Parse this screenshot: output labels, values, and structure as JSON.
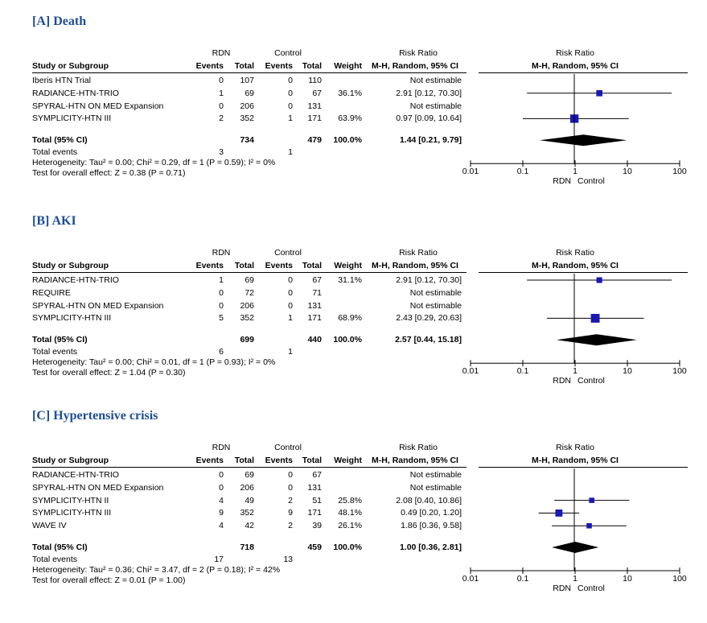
{
  "columns": {
    "rdn": "RDN",
    "control": "Control",
    "risk_ratio": "Risk Ratio",
    "study_or_subgroup": "Study or Subgroup",
    "events": "Events",
    "total": "Total",
    "weight": "Weight",
    "method_ci": "M-H, Random, 95% CI",
    "plot_title": "Risk Ratio",
    "plot_method": "M-H, Random, 95% CI"
  },
  "axis": {
    "ticks": [
      "0.01",
      "0.1",
      "1",
      "10",
      "100"
    ],
    "favours_left": "RDN",
    "favours_right": "Control",
    "scale": "log10",
    "range": [
      0.01,
      100
    ]
  },
  "colors": {
    "title": "#1f4e96",
    "marker": "#1a18b0",
    "diamond": "#000000"
  },
  "panels": [
    {
      "title": "[A] Death",
      "studies": [
        {
          "name": "Iberis HTN Trial",
          "rdn_events": "0",
          "rdn_total": "107",
          "ctrl_events": "0",
          "ctrl_total": "110",
          "weight": "",
          "ci_text": "Not estimable"
        },
        {
          "name": "RADIANCE-HTN-TRIO",
          "rdn_events": "1",
          "rdn_total": "69",
          "ctrl_events": "0",
          "ctrl_total": "67",
          "weight": "36.1%",
          "ci_text": "2.91 [0.12, 70.30]"
        },
        {
          "name": "SPYRAL-HTN ON MED Expansion",
          "rdn_events": "0",
          "rdn_total": "206",
          "ctrl_events": "0",
          "ctrl_total": "131",
          "weight": "",
          "ci_text": "Not estimable"
        },
        {
          "name": "SYMPLICITY-HTN III",
          "rdn_events": "2",
          "rdn_total": "352",
          "ctrl_events": "1",
          "ctrl_total": "171",
          "weight": "63.9%",
          "ci_text": "0.97 [0.09, 10.64]"
        }
      ],
      "total": {
        "label": "Total (95% CI)",
        "rdn_total": "734",
        "ctrl_total": "479",
        "weight": "100.0%",
        "ci_text": "1.44 [0.21, 9.79]"
      },
      "total_events": {
        "label": "Total events",
        "rdn": "3",
        "ctrl": "1"
      },
      "heterogeneity": "Heterogeneity: Tau² = 0.00; Chi² = 0.29, df = 1 (P = 0.59); I² = 0%",
      "overall_effect": "Test for overall effect: Z = 0.38 (P = 0.71)"
    },
    {
      "title": "[B] AKI",
      "studies": [
        {
          "name": "RADIANCE-HTN-TRIO",
          "rdn_events": "1",
          "rdn_total": "69",
          "ctrl_events": "0",
          "ctrl_total": "67",
          "weight": "31.1%",
          "ci_text": "2.91 [0.12, 70.30]"
        },
        {
          "name": "REQUIRE",
          "rdn_events": "0",
          "rdn_total": "72",
          "ctrl_events": "0",
          "ctrl_total": "71",
          "weight": "",
          "ci_text": "Not estimable"
        },
        {
          "name": "SPYRAL-HTN ON MED Expansion",
          "rdn_events": "0",
          "rdn_total": "206",
          "ctrl_events": "0",
          "ctrl_total": "131",
          "weight": "",
          "ci_text": "Not estimable"
        },
        {
          "name": "SYMPLICITY-HTN III",
          "rdn_events": "5",
          "rdn_total": "352",
          "ctrl_events": "1",
          "ctrl_total": "171",
          "weight": "68.9%",
          "ci_text": "2.43 [0.29, 20.63]"
        }
      ],
      "total": {
        "label": "Total (95% CI)",
        "rdn_total": "699",
        "ctrl_total": "440",
        "weight": "100.0%",
        "ci_text": "2.57 [0.44, 15.18]"
      },
      "total_events": {
        "label": "Total events",
        "rdn": "6",
        "ctrl": "1"
      },
      "heterogeneity": "Heterogeneity: Tau² = 0.00; Chi² = 0.01, df = 1 (P = 0.93); I² = 0%",
      "overall_effect": "Test for overall effect: Z = 1.04 (P = 0.30)"
    },
    {
      "title": "[C] Hypertensive crisis",
      "studies": [
        {
          "name": "RADIANCE-HTN-TRIO",
          "rdn_events": "0",
          "rdn_total": "69",
          "ctrl_events": "0",
          "ctrl_total": "67",
          "weight": "",
          "ci_text": "Not estimable"
        },
        {
          "name": "SPYRAL-HTN ON MED Expansion",
          "rdn_events": "0",
          "rdn_total": "206",
          "ctrl_events": "0",
          "ctrl_total": "131",
          "weight": "",
          "ci_text": "Not estimable"
        },
        {
          "name": "SYMPLICITY-HTN II",
          "rdn_events": "4",
          "rdn_total": "49",
          "ctrl_events": "2",
          "ctrl_total": "51",
          "weight": "25.8%",
          "ci_text": "2.08 [0.40, 10.86]"
        },
        {
          "name": "SYMPLICITY-HTN III",
          "rdn_events": "9",
          "rdn_total": "352",
          "ctrl_events": "9",
          "ctrl_total": "171",
          "weight": "48.1%",
          "ci_text": "0.49 [0.20, 1.20]"
        },
        {
          "name": "WAVE IV",
          "rdn_events": "4",
          "rdn_total": "42",
          "ctrl_events": "2",
          "ctrl_total": "39",
          "weight": "26.1%",
          "ci_text": "1.86 [0.36, 9.58]"
        }
      ],
      "total": {
        "label": "Total (95% CI)",
        "rdn_total": "718",
        "ctrl_total": "459",
        "weight": "100.0%",
        "ci_text": "1.00 [0.36, 2.81]"
      },
      "total_events": {
        "label": "Total events",
        "rdn": "17",
        "ctrl": "13"
      },
      "heterogeneity": "Heterogeneity: Tau² = 0.36; Chi² = 3.47, df = 2 (P = 0.18); I² = 42%",
      "overall_effect": "Test for overall effect: Z = 0.01 (P = 1.00)"
    }
  ],
  "chart_data": [
    {
      "type": "scatter",
      "title": "[A] Death",
      "x_scale": "log",
      "xlim": [
        0.01,
        100
      ],
      "xticks": [
        "0.01",
        "0.1",
        "1",
        "10",
        "100"
      ],
      "points": [
        {
          "study": "Iberis HTN Trial",
          "rr": null,
          "lo": null,
          "hi": null,
          "weight": null
        },
        {
          "study": "RADIANCE-HTN-TRIO",
          "rr": 2.91,
          "lo": 0.12,
          "hi": 70.3,
          "weight": 36.1
        },
        {
          "study": "SPYRAL-HTN ON MED Expansion",
          "rr": null,
          "lo": null,
          "hi": null,
          "weight": null
        },
        {
          "study": "SYMPLICITY-HTN III",
          "rr": 0.97,
          "lo": 0.09,
          "hi": 10.64,
          "weight": 63.9
        }
      ],
      "pooled": {
        "rr": 1.44,
        "lo": 0.21,
        "hi": 9.79
      }
    },
    {
      "type": "scatter",
      "title": "[B] AKI",
      "x_scale": "log",
      "xlim": [
        0.01,
        100
      ],
      "xticks": [
        "0.01",
        "0.1",
        "1",
        "10",
        "100"
      ],
      "points": [
        {
          "study": "RADIANCE-HTN-TRIO",
          "rr": 2.91,
          "lo": 0.12,
          "hi": 70.3,
          "weight": 31.1
        },
        {
          "study": "REQUIRE",
          "rr": null,
          "lo": null,
          "hi": null,
          "weight": null
        },
        {
          "study": "SPYRAL-HTN ON MED Expansion",
          "rr": null,
          "lo": null,
          "hi": null,
          "weight": null
        },
        {
          "study": "SYMPLICITY-HTN III",
          "rr": 2.43,
          "lo": 0.29,
          "hi": 20.63,
          "weight": 68.9
        }
      ],
      "pooled": {
        "rr": 2.57,
        "lo": 0.44,
        "hi": 15.18
      }
    },
    {
      "type": "scatter",
      "title": "[C] Hypertensive crisis",
      "x_scale": "log",
      "xlim": [
        0.01,
        100
      ],
      "xticks": [
        "0.01",
        "0.1",
        "1",
        "10",
        "100"
      ],
      "points": [
        {
          "study": "RADIANCE-HTN-TRIO",
          "rr": null,
          "lo": null,
          "hi": null,
          "weight": null
        },
        {
          "study": "SPYRAL-HTN ON MED Expansion",
          "rr": null,
          "lo": null,
          "hi": null,
          "weight": null
        },
        {
          "study": "SYMPLICITY-HTN II",
          "rr": 2.08,
          "lo": 0.4,
          "hi": 10.86,
          "weight": 25.8
        },
        {
          "study": "SYMPLICITY-HTN III",
          "rr": 0.49,
          "lo": 0.2,
          "hi": 1.2,
          "weight": 48.1
        },
        {
          "study": "WAVE IV",
          "rr": 1.86,
          "lo": 0.36,
          "hi": 9.58,
          "weight": 26.1
        }
      ],
      "pooled": {
        "rr": 1.0,
        "lo": 0.36,
        "hi": 2.81
      }
    }
  ]
}
